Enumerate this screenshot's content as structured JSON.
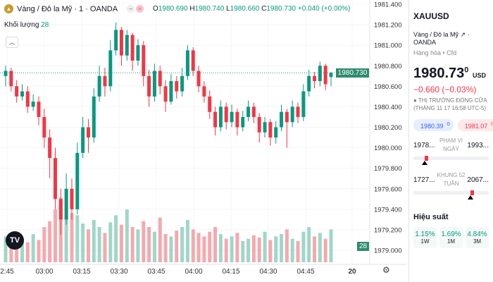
{
  "header": {
    "title": "Vàng / Đô la Mỹ · 1 · OANDA",
    "o_label": "O",
    "o": "1980.690",
    "h_label": "H",
    "h": "1980.740",
    "l_label": "L",
    "l": "1980.660",
    "c_label": "C",
    "c": "1980.730",
    "change": "+0.040 (+0.00%)",
    "logo_icon": "gold-bars-icon"
  },
  "volume_legend": {
    "label": "Khối lượng",
    "value": "28"
  },
  "current_price_tag": "1980.730",
  "current_volume_tag": "28",
  "colors": {
    "up": "#089981",
    "down": "#f23645",
    "up_vol": "#9fd7c8",
    "down_vol": "#f4a9ae"
  },
  "chart_data": {
    "type": "candlestick",
    "yticks": [
      "1981.400",
      "1981.200",
      "1981.000",
      "1980.800",
      "1980.600",
      "1980.400",
      "1980.200",
      "1980.000",
      "1979.800",
      "1979.600",
      "1979.400",
      "1979.200",
      "1979.000"
    ],
    "ylim": [
      1979.0,
      1981.4
    ],
    "xticks": [
      "2:45",
      "03:00",
      "03:15",
      "03:30",
      "03:45",
      "04:00",
      "04:15",
      "04:30",
      "04:45",
      "20"
    ],
    "candles": [
      [
        1980.7,
        1980.8,
        1980.6,
        1980.75
      ],
      [
        1980.75,
        1980.78,
        1980.55,
        1980.6
      ],
      [
        1980.6,
        1980.66,
        1980.44,
        1980.5
      ],
      [
        1980.5,
        1980.62,
        1980.46,
        1980.55
      ],
      [
        1980.55,
        1980.6,
        1980.34,
        1980.4
      ],
      [
        1980.4,
        1980.52,
        1980.36,
        1980.45
      ],
      [
        1980.45,
        1980.5,
        1980.22,
        1980.3
      ],
      [
        1980.3,
        1980.38,
        1980.0,
        1980.1
      ],
      [
        1980.1,
        1980.18,
        1979.7,
        1979.9
      ],
      [
        1979.9,
        1980.0,
        1979.4,
        1979.5
      ],
      [
        1979.5,
        1979.6,
        1979.15,
        1979.3
      ],
      [
        1979.3,
        1979.75,
        1979.25,
        1979.6
      ],
      [
        1979.6,
        1979.7,
        1979.3,
        1979.4
      ],
      [
        1979.4,
        1980.05,
        1979.35,
        1979.95
      ],
      [
        1979.95,
        1980.3,
        1979.9,
        1980.2
      ],
      [
        1980.2,
        1980.28,
        1979.95,
        1980.1
      ],
      [
        1980.1,
        1980.58,
        1980.05,
        1980.5
      ],
      [
        1980.5,
        1980.8,
        1980.45,
        1980.7
      ],
      [
        1980.7,
        1980.78,
        1980.5,
        1980.6
      ],
      [
        1980.6,
        1981.05,
        1980.55,
        1980.95
      ],
      [
        1980.95,
        1981.22,
        1980.9,
        1981.15
      ],
      [
        1981.15,
        1981.18,
        1980.8,
        1980.9
      ],
      [
        1980.9,
        1981.15,
        1980.85,
        1981.1
      ],
      [
        1981.1,
        1981.12,
        1980.75,
        1980.85
      ],
      [
        1980.85,
        1981.06,
        1980.8,
        1981.0
      ],
      [
        1981.0,
        1981.04,
        1980.6,
        1980.7
      ],
      [
        1980.7,
        1980.76,
        1980.4,
        1980.5
      ],
      [
        1980.5,
        1980.82,
        1980.45,
        1980.75
      ],
      [
        1980.75,
        1980.8,
        1980.52,
        1980.6
      ],
      [
        1980.6,
        1980.66,
        1980.35,
        1980.45
      ],
      [
        1980.45,
        1980.72,
        1980.42,
        1980.65
      ],
      [
        1980.65,
        1980.7,
        1980.48,
        1980.55
      ],
      [
        1980.55,
        1980.78,
        1980.5,
        1980.7
      ],
      [
        1980.7,
        1981.0,
        1980.66,
        1980.95
      ],
      [
        1980.95,
        1980.98,
        1980.7,
        1980.75
      ],
      [
        1980.75,
        1980.8,
        1980.54,
        1980.6
      ],
      [
        1980.6,
        1980.65,
        1980.44,
        1980.5
      ],
      [
        1980.5,
        1980.56,
        1980.28,
        1980.35
      ],
      [
        1980.35,
        1980.4,
        1980.12,
        1980.2
      ],
      [
        1980.2,
        1980.46,
        1980.16,
        1980.4
      ],
      [
        1980.4,
        1980.44,
        1980.18,
        1980.25
      ],
      [
        1980.25,
        1980.42,
        1980.2,
        1980.35
      ],
      [
        1980.35,
        1980.38,
        1980.12,
        1980.2
      ],
      [
        1980.2,
        1980.36,
        1980.16,
        1980.3
      ],
      [
        1980.3,
        1980.46,
        1980.26,
        1980.4
      ],
      [
        1980.4,
        1980.44,
        1980.24,
        1980.3
      ],
      [
        1980.3,
        1980.34,
        1980.05,
        1980.15
      ],
      [
        1980.15,
        1980.3,
        1980.1,
        1980.25
      ],
      [
        1980.25,
        1980.28,
        1980.02,
        1980.1
      ],
      [
        1980.1,
        1980.26,
        1980.04,
        1980.2
      ],
      [
        1980.2,
        1980.42,
        1980.16,
        1980.35
      ],
      [
        1980.35,
        1980.38,
        1980.0,
        1980.25
      ],
      [
        1980.25,
        1980.46,
        1980.2,
        1980.4
      ],
      [
        1980.4,
        1980.44,
        1980.24,
        1980.3
      ],
      [
        1980.3,
        1980.62,
        1980.26,
        1980.55
      ],
      [
        1980.55,
        1980.76,
        1980.5,
        1980.7
      ],
      [
        1980.7,
        1980.74,
        1980.58,
        1980.65
      ],
      [
        1980.65,
        1980.84,
        1980.6,
        1980.8
      ],
      [
        1980.8,
        1980.82,
        1980.56,
        1980.62
      ],
      [
        1980.69,
        1980.74,
        1980.6,
        1980.73
      ]
    ],
    "volume": [
      22,
      18,
      15,
      20,
      17,
      24,
      19,
      30,
      35,
      45,
      55,
      38,
      42,
      40,
      33,
      28,
      36,
      30,
      25,
      34,
      40,
      32,
      45,
      30,
      28,
      35,
      30,
      26,
      38,
      24,
      22,
      27,
      30,
      36,
      28,
      25,
      22,
      26,
      30,
      24,
      20,
      22,
      25,
      18,
      20,
      23,
      21,
      26,
      19,
      22,
      24,
      28,
      20,
      18,
      26,
      30,
      22,
      25,
      20,
      28
    ],
    "current_price": 1980.73
  },
  "panel": {
    "symbol": "XAUUSD",
    "name": "Vàng / Đô la Mỹ",
    "exchange": "· OANDA",
    "category": "Hàng hóa • Cfd",
    "price": "1980.73",
    "price_sup": "0",
    "currency": "USD",
    "change": "−0.660 (−0.03%)",
    "market_status": "THỊ TRƯỜNG ĐÓNG CỬA",
    "market_time": "(THÁNG 11 17 16:58 UTC-5)",
    "bid": "1980.39",
    "bid_sup": "0",
    "ask": "1981.07",
    "ask_sup": "0",
    "day_range": {
      "low": "1978...",
      "label1": "PHẠM VI",
      "label2": "NGÀY",
      "high": "1993...",
      "position": 0.15
    },
    "week52_range": {
      "low": "1727...",
      "label1": "KHUNG 52",
      "label2": "TUẦN",
      "high": "2067...",
      "position": 0.76
    },
    "performance_title": "Hiệu suất",
    "performance": [
      {
        "value": "1.15%",
        "period": "1W"
      },
      {
        "value": "1.69%",
        "period": "1M"
      },
      {
        "value": "4.84%",
        "period": "3M"
      }
    ]
  }
}
